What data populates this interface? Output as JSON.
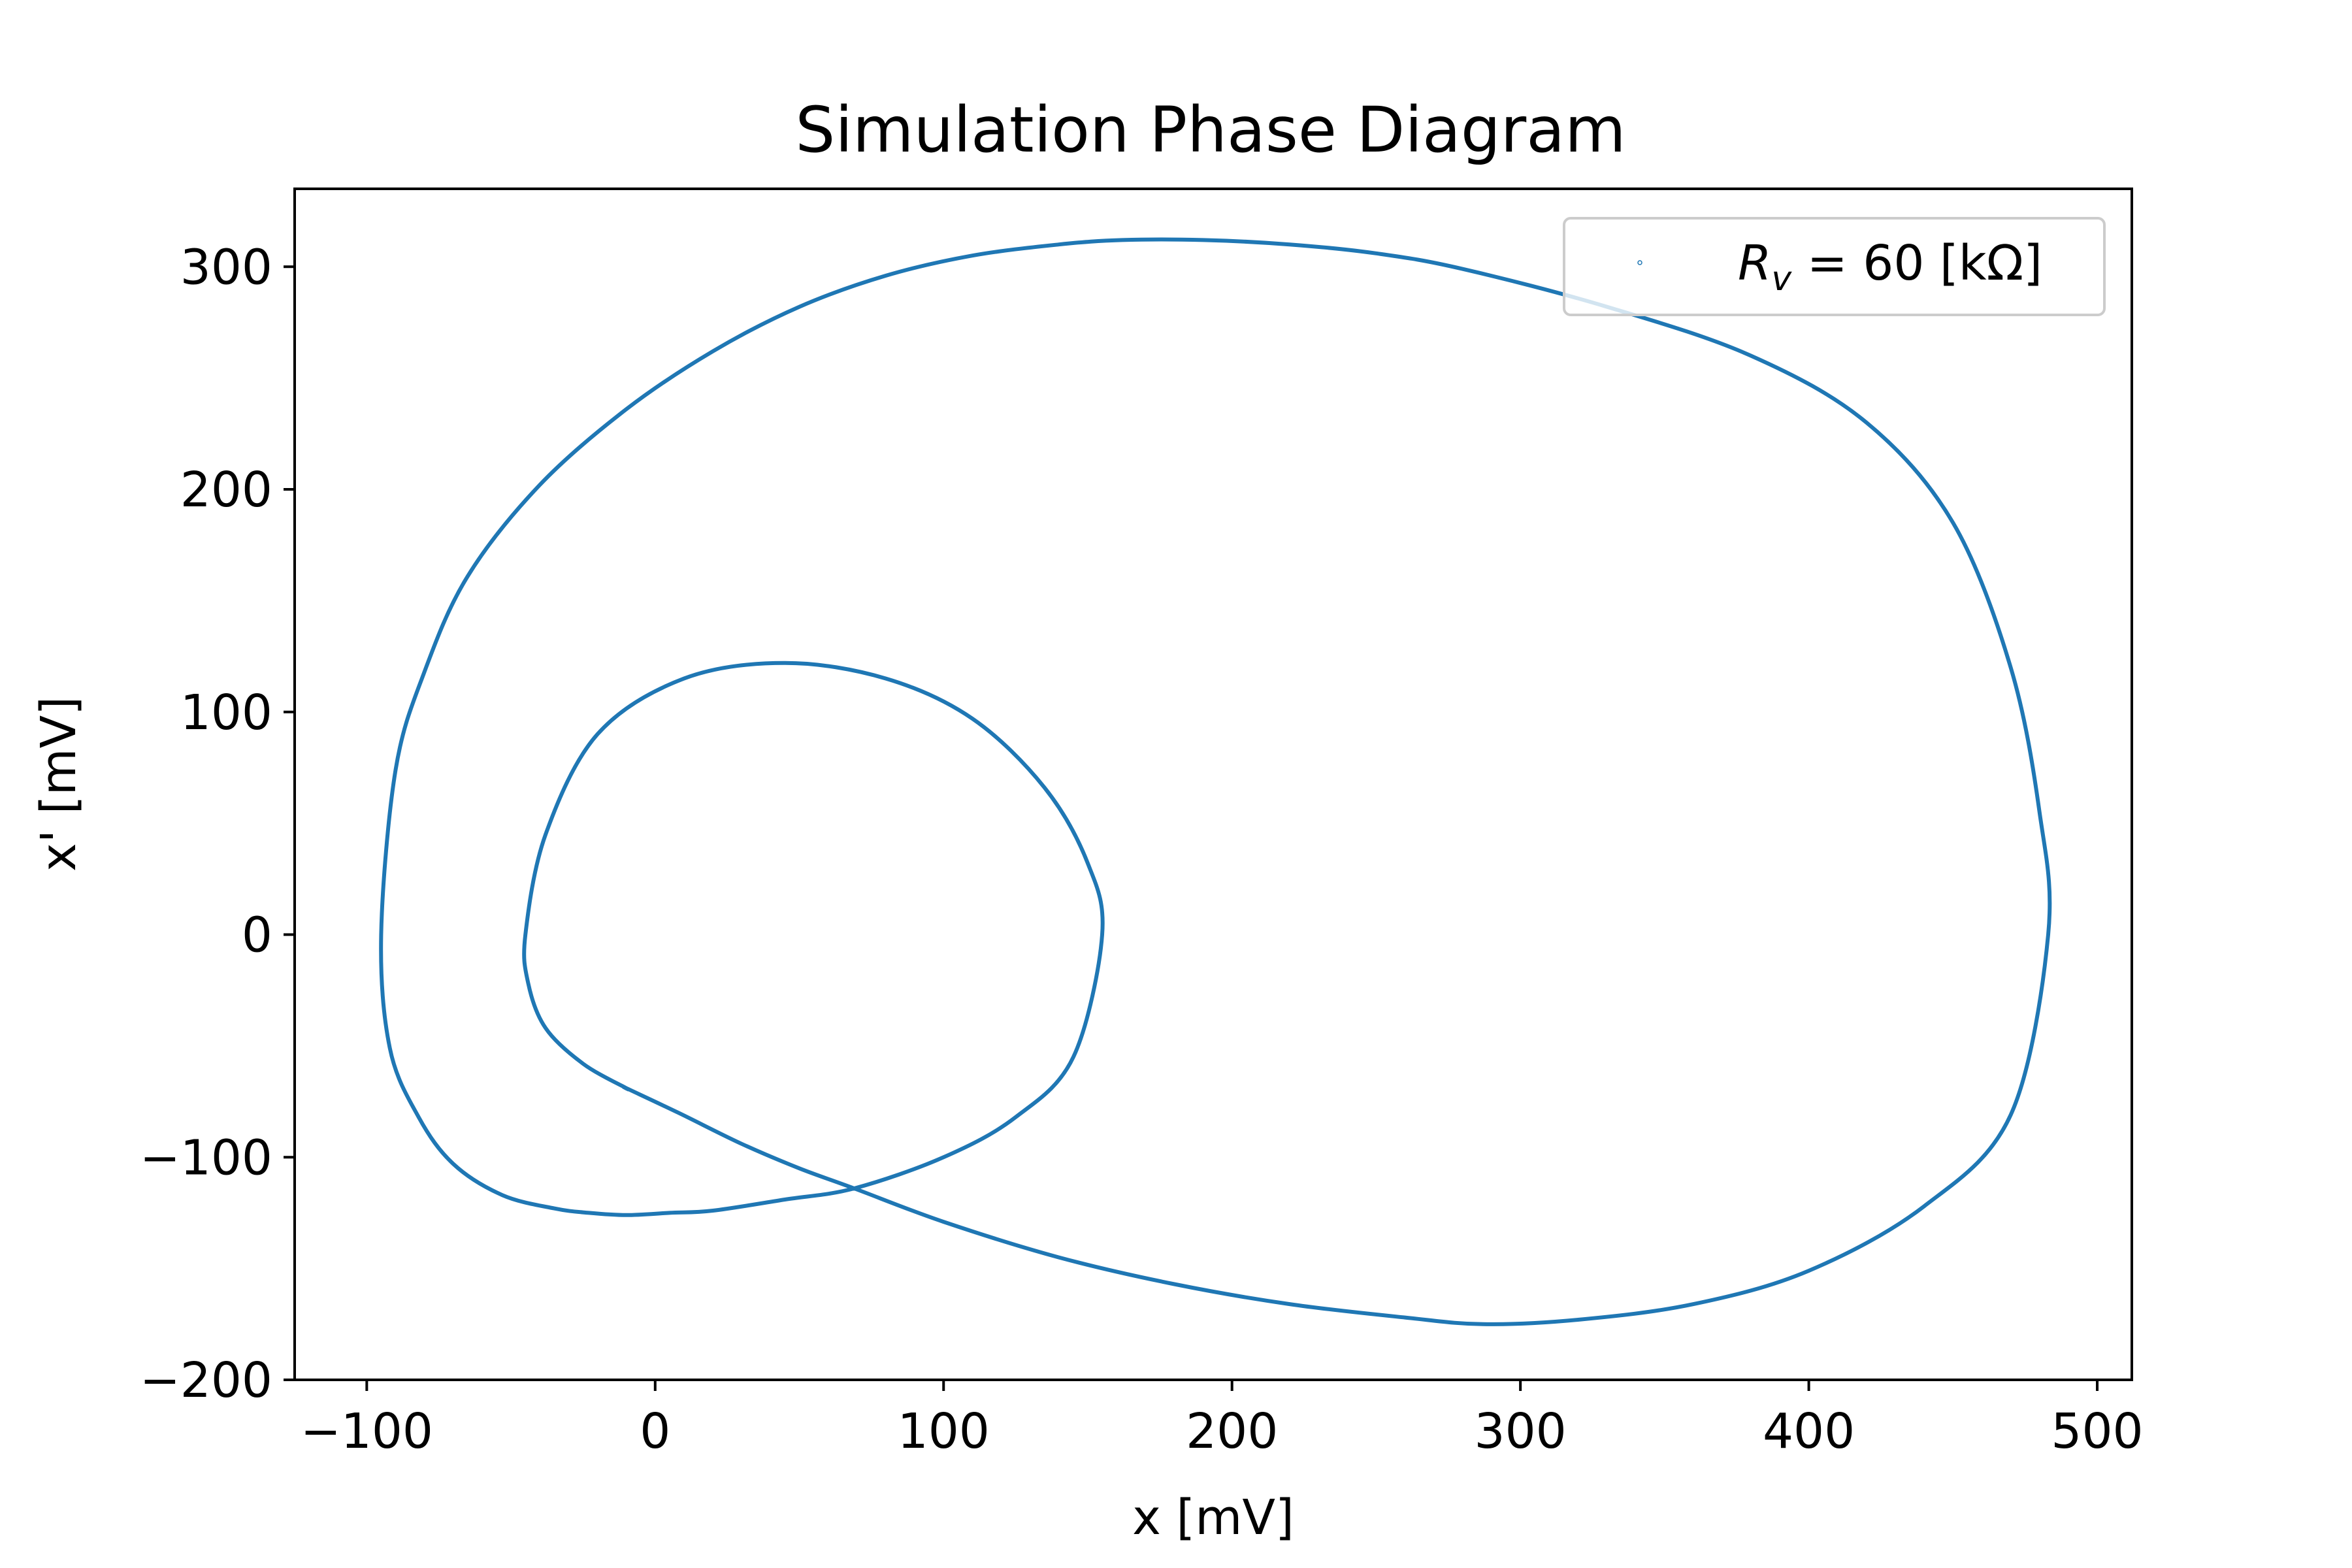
{
  "chart_data": {
    "type": "line",
    "title": "Simulation Phase Diagram",
    "xlabel": "x [mV]",
    "ylabel": "x' [mV]",
    "xlim": [
      -125,
      512
    ],
    "ylim": [
      -200,
      335
    ],
    "xticks": [
      -100,
      0,
      100,
      200,
      300,
      400,
      500
    ],
    "yticks": [
      -200,
      -100,
      0,
      100,
      200,
      300
    ],
    "xtick_labels": [
      "−100",
      "0",
      "100",
      "200",
      "300",
      "400",
      "500"
    ],
    "ytick_labels": [
      "−200",
      "−100",
      "0",
      "100",
      "200",
      "300"
    ],
    "grid": false,
    "legend": {
      "placement": "upper right",
      "entries": [
        {
          "symbol": "R",
          "subscript": "v",
          "text": " = 60 [kΩ]"
        }
      ]
    },
    "color": "#1f77b4",
    "series": [
      {
        "name": "R_v = 60 [kΩ]",
        "x": [
          -10,
          8,
          30,
          50,
          69,
          100,
          140,
          180,
          220,
          260,
          287,
          320,
          360,
          400,
          440,
          470,
          483,
          480,
          470,
          450,
          420,
          380,
          330,
          280,
          250,
          220,
          190,
          162,
          140,
          110,
          80,
          50,
          20,
          -10,
          -40,
          -65,
          -80,
          -90,
          -95,
          -92,
          -82,
          -70,
          -53,
          -35,
          -23,
          -10,
          5,
          20,
          45,
          69,
          100,
          125,
          145,
          155,
          150,
          135,
          110,
          80,
          45,
          10,
          -20,
          -38,
          -45,
          -44,
          -38,
          -25,
          -10
        ],
        "y": [
          -69,
          -80,
          -94,
          -105,
          -114,
          -129,
          -145,
          -157,
          -166,
          -172,
          -175,
          -173,
          -166,
          -151,
          -122,
          -81,
          0,
          55,
          120,
          185,
          230,
          260,
          282,
          299,
          306,
          310,
          312,
          312,
          310,
          305,
          296,
          282,
          262,
          236,
          202,
          161,
          118,
          74,
          0,
          -51,
          -82,
          -103,
          -117,
          -123,
          -125,
          -126,
          -125,
          -124,
          -119,
          -114,
          -100,
          -82,
          -55,
          0,
          32,
          66,
          97,
          115,
          122,
          115,
          90,
          45,
          0,
          -22,
          -42,
          -58,
          -69
        ]
      }
    ]
  }
}
